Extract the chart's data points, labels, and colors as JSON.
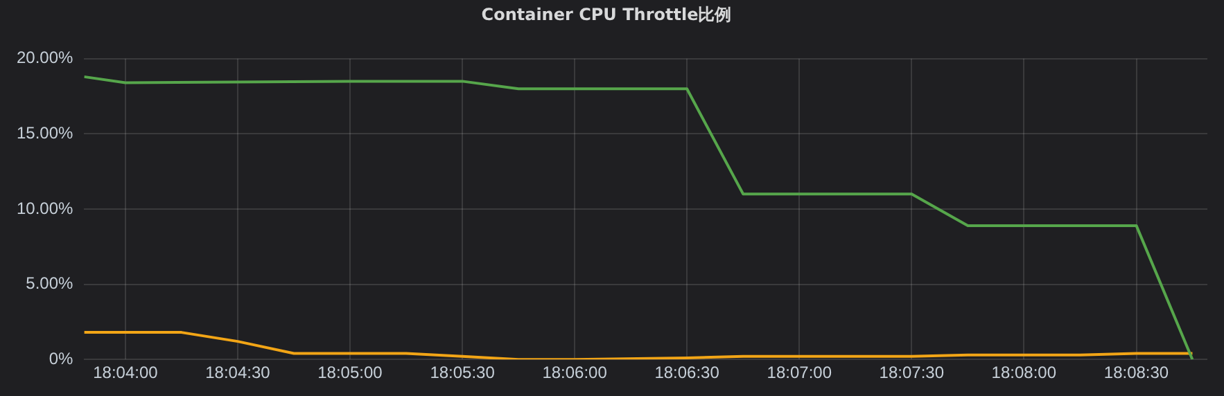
{
  "chart_data": {
    "type": "line",
    "title": "Container CPU Throttle比例",
    "xlim": [
      18.06361,
      18.14694
    ],
    "xticks": [
      {
        "value": 18.06667,
        "label": "18:04:00"
      },
      {
        "value": 18.075,
        "label": "18:04:30"
      },
      {
        "value": 18.08333,
        "label": "18:05:00"
      },
      {
        "value": 18.09167,
        "label": "18:05:30"
      },
      {
        "value": 18.1,
        "label": "18:06:00"
      },
      {
        "value": 18.10833,
        "label": "18:06:30"
      },
      {
        "value": 18.11667,
        "label": "18:07:00"
      },
      {
        "value": 18.125,
        "label": "18:07:30"
      },
      {
        "value": 18.13333,
        "label": "18:08:00"
      },
      {
        "value": 18.14167,
        "label": "18:08:30"
      }
    ],
    "ylim": [
      0,
      20
    ],
    "yticks": [
      {
        "value": 0,
        "label": "0%"
      },
      {
        "value": 5,
        "label": "5.00%"
      },
      {
        "value": 10,
        "label": "10.00%"
      },
      {
        "value": 15,
        "label": "15.00%"
      },
      {
        "value": 20,
        "label": "20.00%"
      }
    ],
    "series": [
      {
        "color": "#56a64b",
        "x": [
          18.06361,
          18.06667,
          18.08333,
          18.09167,
          18.09583,
          18.10833,
          18.1125,
          18.125,
          18.12917,
          18.14167,
          18.14583
        ],
        "values": [
          18.8,
          18.4,
          18.5,
          18.5,
          18.0,
          18.0,
          11.0,
          11.0,
          8.9,
          8.9,
          0
        ]
      },
      {
        "color": "#f2a516",
        "x": [
          18.06361,
          18.07083,
          18.075,
          18.07917,
          18.0875,
          18.09167,
          18.09583,
          18.1,
          18.10833,
          18.1125,
          18.125,
          18.12917,
          18.13333,
          18.1375,
          18.14167,
          18.14583
        ],
        "values": [
          1.8,
          1.8,
          1.2,
          0.4,
          0.4,
          0.2,
          0,
          0,
          0.1,
          0.2,
          0.2,
          0.3,
          0.3,
          0.3,
          0.4,
          0.4
        ]
      }
    ],
    "grid": true,
    "legend": false,
    "marker": "none",
    "line_style": "solid"
  }
}
